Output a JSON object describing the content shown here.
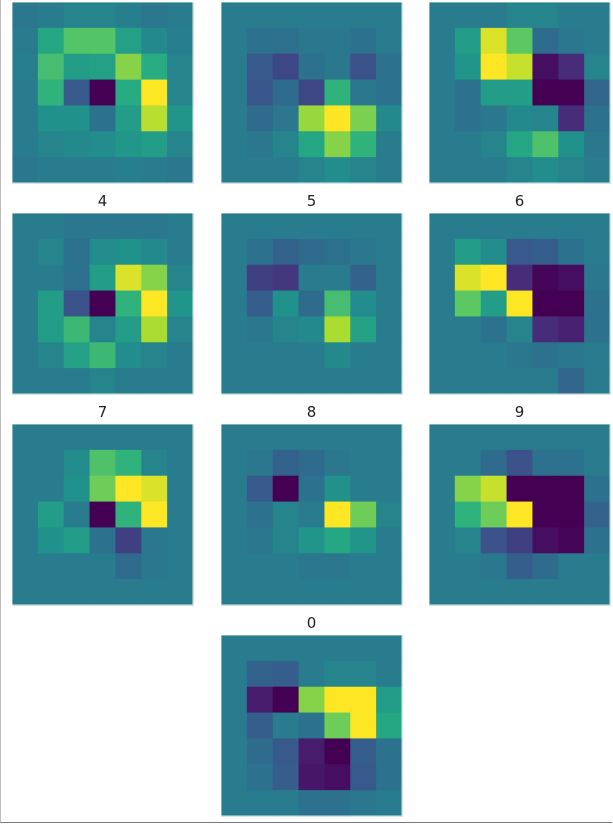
{
  "chart_data": {
    "type": "heatmap",
    "colormap": "viridis",
    "vmin": 0,
    "vmax": 1,
    "grid": false,
    "panels": [
      {
        "label": "",
        "values": [
          [
            0.4,
            0.42,
            0.45,
            0.45,
            0.43,
            0.4,
            0.42
          ],
          [
            0.42,
            0.6,
            0.73,
            0.73,
            0.57,
            0.47,
            0.43
          ],
          [
            0.43,
            0.7,
            0.55,
            0.57,
            0.82,
            0.63,
            0.45
          ],
          [
            0.42,
            0.65,
            0.28,
            0.0,
            0.62,
            1.0,
            0.45
          ],
          [
            0.42,
            0.5,
            0.5,
            0.38,
            0.55,
            0.9,
            0.52
          ],
          [
            0.42,
            0.45,
            0.47,
            0.48,
            0.53,
            0.55,
            0.45
          ],
          [
            0.4,
            0.42,
            0.42,
            0.42,
            0.43,
            0.42,
            0.4
          ]
        ]
      },
      {
        "label": "",
        "values": [
          [
            0.42,
            0.42,
            0.42,
            0.42,
            0.42,
            0.42,
            0.42
          ],
          [
            0.42,
            0.38,
            0.37,
            0.4,
            0.4,
            0.38,
            0.42
          ],
          [
            0.42,
            0.28,
            0.22,
            0.38,
            0.4,
            0.25,
            0.38
          ],
          [
            0.42,
            0.27,
            0.35,
            0.22,
            0.65,
            0.4,
            0.38
          ],
          [
            0.42,
            0.35,
            0.4,
            0.85,
            1.0,
            0.8,
            0.47
          ],
          [
            0.42,
            0.4,
            0.45,
            0.6,
            0.82,
            0.65,
            0.42
          ],
          [
            0.42,
            0.42,
            0.42,
            0.45,
            0.48,
            0.45,
            0.42
          ]
        ]
      },
      {
        "label": "",
        "values": [
          [
            0.42,
            0.42,
            0.42,
            0.45,
            0.45,
            0.42,
            0.42
          ],
          [
            0.42,
            0.55,
            0.95,
            0.75,
            0.35,
            0.4,
            0.42
          ],
          [
            0.42,
            0.52,
            1.0,
            0.92,
            0.05,
            0.15,
            0.45
          ],
          [
            0.42,
            0.38,
            0.55,
            0.55,
            0.0,
            0.0,
            0.33
          ],
          [
            0.42,
            0.38,
            0.4,
            0.47,
            0.45,
            0.15,
            0.38
          ],
          [
            0.42,
            0.42,
            0.45,
            0.6,
            0.72,
            0.5,
            0.4
          ],
          [
            0.42,
            0.42,
            0.42,
            0.45,
            0.48,
            0.45,
            0.42
          ]
        ]
      },
      {
        "label": "4",
        "values": [
          [
            0.42,
            0.42,
            0.4,
            0.4,
            0.4,
            0.4,
            0.42
          ],
          [
            0.42,
            0.45,
            0.38,
            0.48,
            0.5,
            0.47,
            0.42
          ],
          [
            0.42,
            0.42,
            0.37,
            0.55,
            0.95,
            0.82,
            0.45
          ],
          [
            0.42,
            0.55,
            0.25,
            0.0,
            0.65,
            1.0,
            0.52
          ],
          [
            0.42,
            0.55,
            0.68,
            0.45,
            0.55,
            0.88,
            0.45
          ],
          [
            0.42,
            0.45,
            0.57,
            0.68,
            0.48,
            0.45,
            0.42
          ],
          [
            0.42,
            0.42,
            0.42,
            0.45,
            0.42,
            0.42,
            0.42
          ]
        ]
      },
      {
        "label": "5",
        "values": [
          [
            0.42,
            0.42,
            0.42,
            0.42,
            0.42,
            0.42,
            0.42
          ],
          [
            0.42,
            0.38,
            0.32,
            0.35,
            0.37,
            0.4,
            0.42
          ],
          [
            0.42,
            0.2,
            0.18,
            0.42,
            0.42,
            0.32,
            0.42
          ],
          [
            0.42,
            0.3,
            0.5,
            0.35,
            0.7,
            0.48,
            0.42
          ],
          [
            0.42,
            0.4,
            0.45,
            0.47,
            0.88,
            0.58,
            0.42
          ],
          [
            0.42,
            0.42,
            0.42,
            0.42,
            0.47,
            0.42,
            0.42
          ],
          [
            0.42,
            0.42,
            0.42,
            0.42,
            0.42,
            0.42,
            0.42
          ]
        ]
      },
      {
        "label": "6",
        "values": [
          [
            0.42,
            0.42,
            0.42,
            0.42,
            0.42,
            0.42,
            0.42
          ],
          [
            0.42,
            0.55,
            0.48,
            0.28,
            0.3,
            0.38,
            0.42
          ],
          [
            0.42,
            0.95,
            1.0,
            0.15,
            0.02,
            0.05,
            0.4
          ],
          [
            0.42,
            0.75,
            0.55,
            1.0,
            0.0,
            0.0,
            0.38
          ],
          [
            0.42,
            0.42,
            0.38,
            0.45,
            0.15,
            0.12,
            0.38
          ],
          [
            0.42,
            0.42,
            0.42,
            0.4,
            0.38,
            0.4,
            0.42
          ],
          [
            0.42,
            0.42,
            0.42,
            0.42,
            0.42,
            0.33,
            0.42
          ]
        ]
      },
      {
        "label": "7",
        "values": [
          [
            0.42,
            0.42,
            0.42,
            0.42,
            0.42,
            0.42,
            0.42
          ],
          [
            0.42,
            0.42,
            0.48,
            0.72,
            0.65,
            0.45,
            0.42
          ],
          [
            0.42,
            0.42,
            0.5,
            0.78,
            1.0,
            0.95,
            0.42
          ],
          [
            0.42,
            0.55,
            0.42,
            0.0,
            0.65,
            1.0,
            0.42
          ],
          [
            0.42,
            0.5,
            0.55,
            0.38,
            0.2,
            0.4,
            0.42
          ],
          [
            0.42,
            0.42,
            0.42,
            0.42,
            0.35,
            0.4,
            0.42
          ],
          [
            0.42,
            0.42,
            0.42,
            0.42,
            0.42,
            0.42,
            0.42
          ]
        ]
      },
      {
        "label": "8",
        "values": [
          [
            0.42,
            0.42,
            0.42,
            0.42,
            0.42,
            0.42,
            0.42
          ],
          [
            0.42,
            0.4,
            0.32,
            0.35,
            0.4,
            0.42,
            0.42
          ],
          [
            0.42,
            0.28,
            0.0,
            0.38,
            0.5,
            0.42,
            0.42
          ],
          [
            0.42,
            0.38,
            0.45,
            0.42,
            1.0,
            0.78,
            0.45
          ],
          [
            0.42,
            0.4,
            0.45,
            0.52,
            0.6,
            0.52,
            0.42
          ],
          [
            0.42,
            0.42,
            0.42,
            0.4,
            0.4,
            0.42,
            0.42
          ],
          [
            0.42,
            0.42,
            0.42,
            0.42,
            0.42,
            0.42,
            0.42
          ]
        ]
      },
      {
        "label": "9",
        "values": [
          [
            0.42,
            0.42,
            0.42,
            0.42,
            0.42,
            0.42,
            0.42
          ],
          [
            0.42,
            0.42,
            0.35,
            0.25,
            0.38,
            0.38,
            0.42
          ],
          [
            0.42,
            0.82,
            0.92,
            0.0,
            0.0,
            0.0,
            0.38
          ],
          [
            0.42,
            0.65,
            0.78,
            1.0,
            0.0,
            0.0,
            0.32
          ],
          [
            0.42,
            0.45,
            0.25,
            0.2,
            0.05,
            0.02,
            0.38
          ],
          [
            0.42,
            0.42,
            0.4,
            0.3,
            0.35,
            0.42,
            0.42
          ],
          [
            0.42,
            0.42,
            0.42,
            0.42,
            0.42,
            0.42,
            0.42
          ]
        ]
      },
      {
        "label": "0",
        "values": [
          [
            0.42,
            0.42,
            0.42,
            0.42,
            0.42,
            0.42,
            0.42
          ],
          [
            0.42,
            0.32,
            0.3,
            0.42,
            0.45,
            0.45,
            0.42
          ],
          [
            0.42,
            0.1,
            0.0,
            0.82,
            1.0,
            1.0,
            0.55
          ],
          [
            0.42,
            0.3,
            0.42,
            0.38,
            0.78,
            1.0,
            0.6
          ],
          [
            0.42,
            0.35,
            0.28,
            0.1,
            0.0,
            0.3,
            0.38
          ],
          [
            0.42,
            0.38,
            0.3,
            0.08,
            0.05,
            0.28,
            0.38
          ],
          [
            0.42,
            0.42,
            0.42,
            0.38,
            0.38,
            0.4,
            0.42
          ]
        ]
      }
    ]
  }
}
